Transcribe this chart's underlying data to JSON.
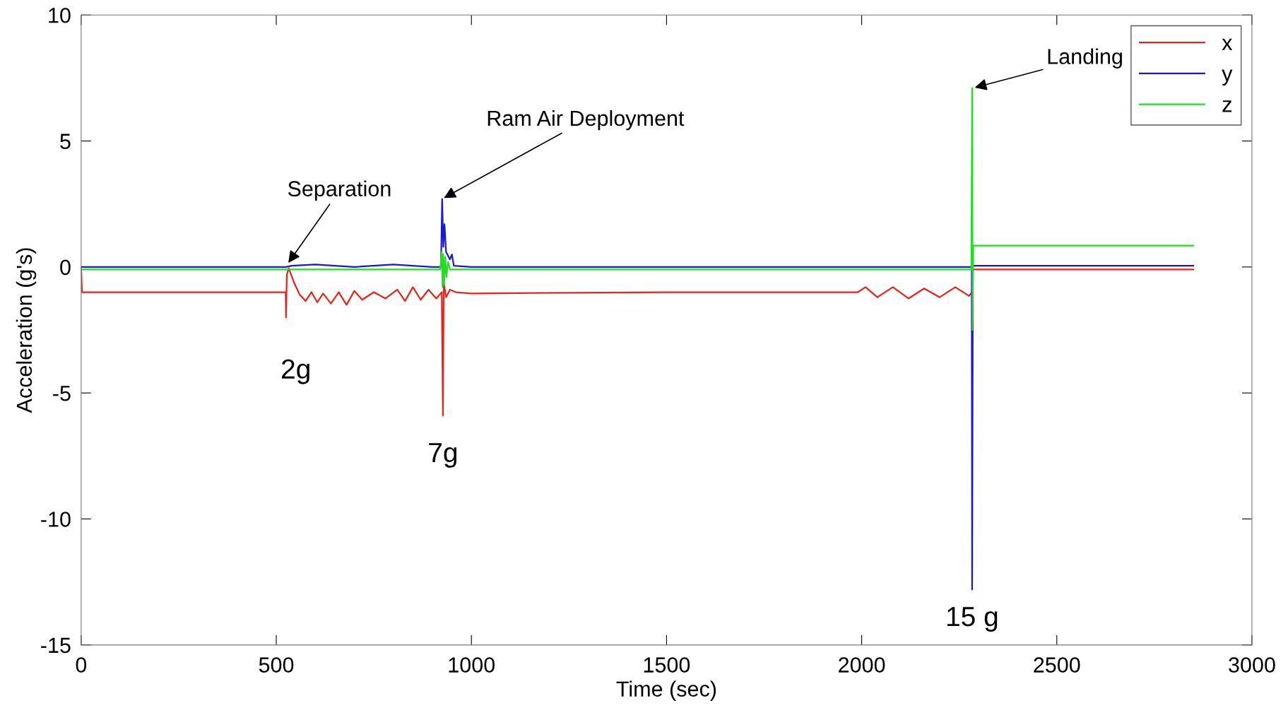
{
  "chart_data": {
    "type": "line",
    "xlabel": "Time (sec)",
    "ylabel": "Acceleration (g's)",
    "xlim": [
      0,
      3000
    ],
    "xticks": [
      0,
      500,
      1000,
      1500,
      2000,
      2500,
      3000
    ],
    "ylim": [
      -15,
      10
    ],
    "yticks": [
      -15,
      -10,
      -5,
      0,
      5,
      10
    ],
    "grid": false,
    "legend": "top right",
    "marker": "none",
    "line_style": "solid",
    "series": [
      {
        "name": "x",
        "color": "#e8231c",
        "x": [
          0,
          2,
          524,
          525,
          527,
          532,
          545,
          560,
          575,
          590,
          605,
          620,
          640,
          660,
          680,
          700,
          720,
          750,
          780,
          810,
          830,
          850,
          870,
          890,
          910,
          924,
          927,
          929,
          935,
          945,
          960,
          1000,
          1500,
          1990,
          2010,
          2040,
          2080,
          2120,
          2160,
          2200,
          2240,
          2275,
          2283,
          2285,
          2850
        ],
        "values": [
          0,
          -1.0,
          -1.0,
          -2.0,
          -0.3,
          -0.05,
          -0.6,
          -1.1,
          -1.35,
          -1.0,
          -1.4,
          -1.05,
          -1.45,
          -1.0,
          -1.5,
          -0.95,
          -1.3,
          -1.0,
          -1.25,
          -0.9,
          -1.35,
          -0.8,
          -1.3,
          -0.9,
          -1.25,
          -1.0,
          -5.9,
          -0.6,
          -1.2,
          -0.9,
          -1.0,
          -1.05,
          -1.0,
          -1.0,
          -0.8,
          -1.2,
          -0.8,
          -1.25,
          -0.85,
          -1.2,
          -0.8,
          -1.15,
          -1.0,
          -0.1,
          -0.1
        ]
      },
      {
        "name": "y",
        "color": "#1a1acc",
        "x": [
          0,
          525,
          540,
          600,
          700,
          800,
          900,
          922,
          925,
          928,
          931,
          935,
          945,
          950,
          955,
          1000,
          2282,
          2283,
          2285,
          2850
        ],
        "values": [
          0,
          0,
          0.05,
          0.1,
          0.0,
          0.1,
          0.0,
          0.0,
          2.7,
          0.8,
          1.7,
          0.6,
          0.3,
          0.5,
          0.05,
          0.0,
          0.0,
          -12.8,
          0.05,
          0.05
        ]
      },
      {
        "name": "z",
        "color": "#22dd22",
        "x": [
          0,
          920,
          924,
          926,
          928,
          930,
          933,
          936,
          940,
          945,
          2281,
          2283,
          2284,
          2286,
          2850
        ],
        "values": [
          -0.1,
          -0.1,
          0.6,
          -0.8,
          0.5,
          -0.7,
          0.4,
          -0.4,
          0.2,
          -0.1,
          -0.1,
          7.1,
          -2.5,
          0.85,
          0.85
        ]
      }
    ],
    "annotations": [
      {
        "text": "Separation",
        "x": 528,
        "y": 0.1
      },
      {
        "text": "Ram Air Deployment",
        "x": 925,
        "y": 2.7
      },
      {
        "text": "Landing",
        "x": 2285,
        "y": 7.1
      },
      {
        "text": "2g",
        "x": 525,
        "y": -2.0
      },
      {
        "text": "7g",
        "x": 927,
        "y": -5.9
      },
      {
        "text": "15 g",
        "x": 2283,
        "y": -12.8
      }
    ]
  }
}
